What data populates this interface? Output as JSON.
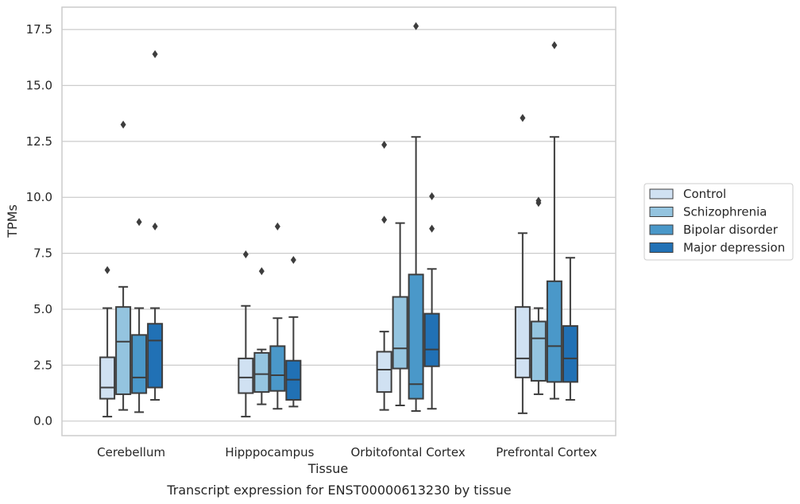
{
  "caption": "Transcript expression for ENST00000613230 by tissue",
  "chart_data": {
    "type": "box",
    "title": "",
    "xlabel": "Tissue",
    "ylabel": "TPMs",
    "ylim": [
      -0.65,
      18.5
    ],
    "yticks": [
      "0.0",
      "2.5",
      "5.0",
      "7.5",
      "10.0",
      "12.5",
      "15.0",
      "17.5"
    ],
    "grid": "horizontal",
    "legend_position": "right",
    "categories": [
      "Cerebellum",
      "Hipppocampus",
      "Orbitofontal Cortex",
      "Prefrontal Cortex"
    ],
    "series": [
      {
        "name": "Control",
        "color": "#d0e1f2",
        "boxes": [
          {
            "whislo": 0.2,
            "q1": 1.0,
            "med": 1.5,
            "q3": 2.85,
            "whishi": 5.05,
            "fliers": [
              6.75
            ]
          },
          {
            "whislo": 0.2,
            "q1": 1.25,
            "med": 1.95,
            "q3": 2.8,
            "whishi": 5.15,
            "fliers": [
              7.45
            ]
          },
          {
            "whislo": 0.5,
            "q1": 1.3,
            "med": 2.3,
            "q3": 3.1,
            "whishi": 4.0,
            "fliers": [
              9.0,
              12.35
            ]
          },
          {
            "whislo": 0.35,
            "q1": 1.95,
            "med": 2.8,
            "q3": 5.1,
            "whishi": 8.4,
            "fliers": [
              13.55
            ]
          }
        ]
      },
      {
        "name": "Schizophrenia",
        "color": "#94c4df",
        "boxes": [
          {
            "whislo": 0.5,
            "q1": 1.2,
            "med": 3.55,
            "q3": 5.1,
            "whishi": 6.0,
            "fliers": [
              13.25
            ]
          },
          {
            "whislo": 0.75,
            "q1": 1.3,
            "med": 2.1,
            "q3": 3.05,
            "whishi": 3.2,
            "fliers": [
              6.7
            ]
          },
          {
            "whislo": 0.7,
            "q1": 2.35,
            "med": 3.25,
            "q3": 5.55,
            "whishi": 8.85,
            "fliers": []
          },
          {
            "whislo": 1.2,
            "q1": 1.8,
            "med": 3.7,
            "q3": 4.45,
            "whishi": 5.05,
            "fliers": [
              9.75,
              9.85
            ]
          }
        ]
      },
      {
        "name": "Bipolar disorder",
        "color": "#4a98c9",
        "boxes": [
          {
            "whislo": 0.4,
            "q1": 1.25,
            "med": 1.95,
            "q3": 3.85,
            "whishi": 5.05,
            "fliers": [
              8.9
            ]
          },
          {
            "whislo": 0.55,
            "q1": 1.35,
            "med": 2.05,
            "q3": 3.35,
            "whishi": 4.6,
            "fliers": [
              8.7
            ]
          },
          {
            "whislo": 0.45,
            "q1": 1.0,
            "med": 1.65,
            "q3": 6.55,
            "whishi": 12.7,
            "fliers": [
              17.65
            ]
          },
          {
            "whislo": 1.0,
            "q1": 1.75,
            "med": 3.35,
            "q3": 6.25,
            "whishi": 12.7,
            "fliers": [
              16.8
            ]
          }
        ]
      },
      {
        "name": "Major depression",
        "color": "#2171b5",
        "boxes": [
          {
            "whislo": 0.95,
            "q1": 1.5,
            "med": 3.6,
            "q3": 4.35,
            "whishi": 5.05,
            "fliers": [
              8.7,
              16.4
            ]
          },
          {
            "whislo": 0.65,
            "q1": 0.95,
            "med": 1.85,
            "q3": 2.7,
            "whishi": 4.65,
            "fliers": [
              7.2
            ]
          },
          {
            "whislo": 0.55,
            "q1": 2.45,
            "med": 3.2,
            "q3": 4.8,
            "whishi": 6.8,
            "fliers": [
              8.6,
              10.05
            ]
          },
          {
            "whislo": 0.95,
            "q1": 1.75,
            "med": 2.8,
            "q3": 4.25,
            "whishi": 7.3,
            "fliers": []
          }
        ]
      }
    ]
  }
}
